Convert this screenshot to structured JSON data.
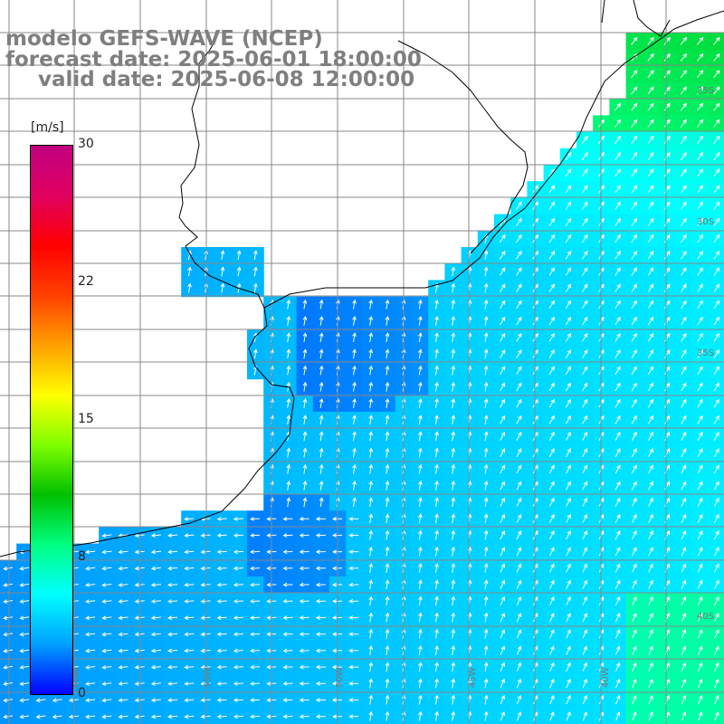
{
  "header": {
    "model": "modelo GEFS-WAVE (NCEP)",
    "forecast": "forecast date: 2025-06-01 18:00:00",
    "valid": "valid date: 2025-06-08 12:00:00"
  },
  "colorbar": {
    "unit": "[m/s]",
    "ticks": [
      "30",
      "22",
      "15",
      "8",
      "0"
    ],
    "tick_values": [
      30,
      22,
      15,
      8,
      0
    ],
    "colors": [
      "#0000ff",
      "#00a0ff",
      "#00ffff",
      "#00ff80",
      "#00c000",
      "#80ff00",
      "#ffff00",
      "#ffa000",
      "#ff4000",
      "#ff0000",
      "#e00060",
      "#c00080"
    ]
  },
  "map_labels": {
    "lon": [
      "60W",
      "55W",
      "50W",
      "45W",
      "40W"
    ],
    "lat": [
      "25S",
      "30S",
      "35S",
      "40S"
    ]
  },
  "legend_colors": {
    "land": "#ffffff",
    "grid": "#888888",
    "coast": "#000000",
    "arrow": "#ffffff"
  }
}
